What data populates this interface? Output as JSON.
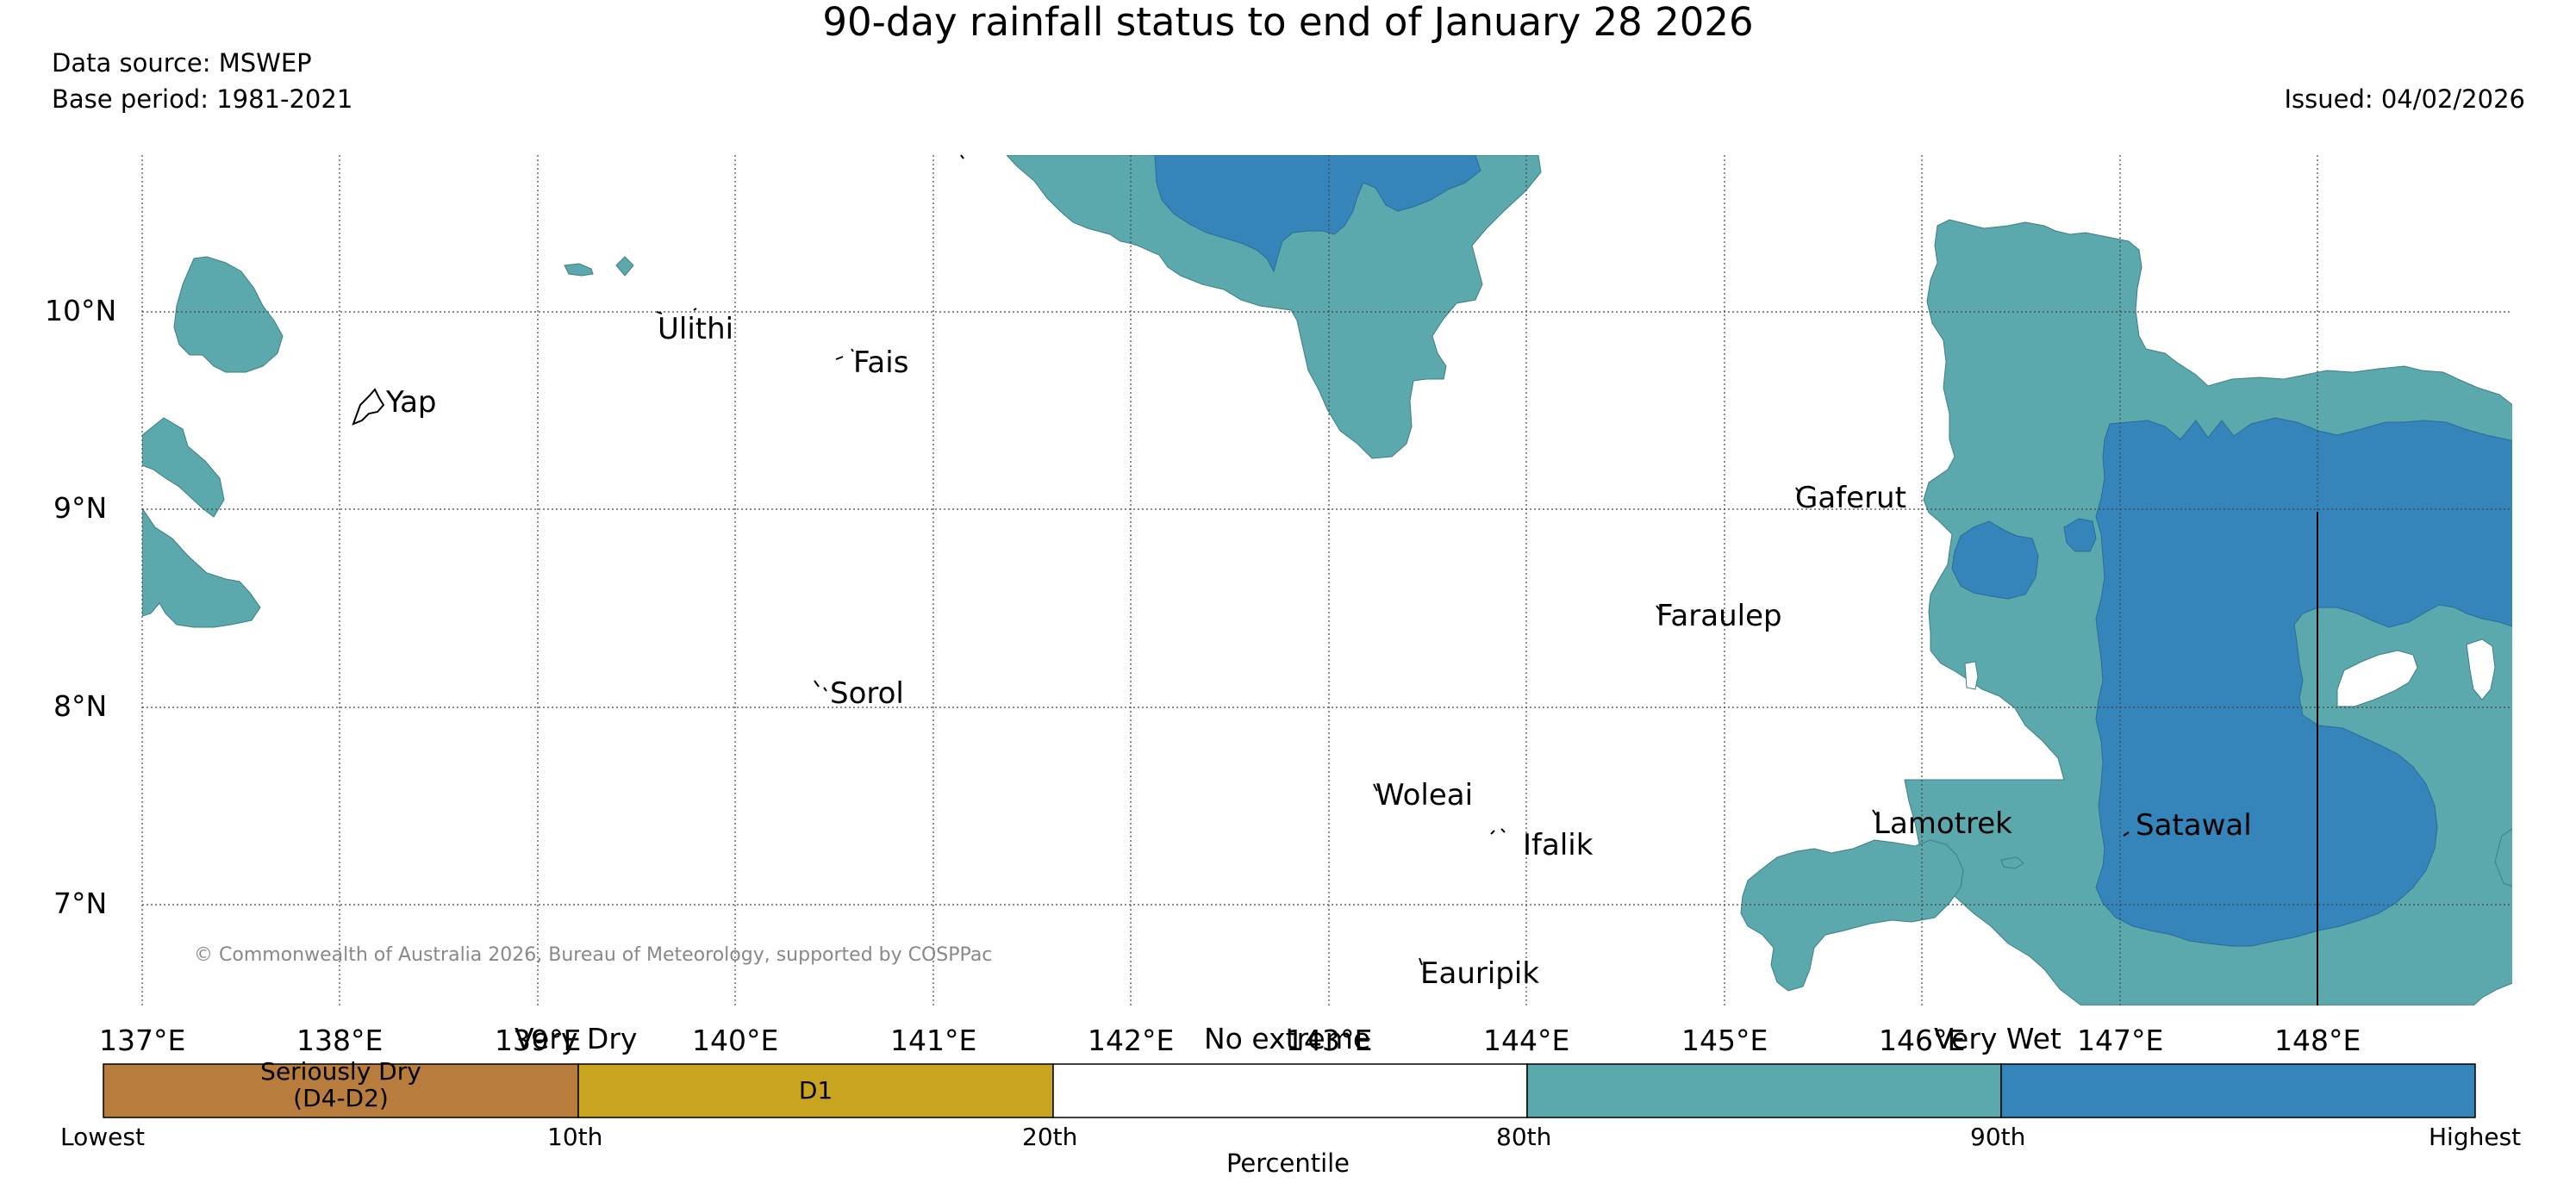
{
  "header": {
    "title": "90-day rainfall status to end of January 28 2026",
    "data_source": "Data source: MSWEP",
    "base_period": "Base period: 1981-2021",
    "issued": "Issued: 04/02/2026"
  },
  "map": {
    "lat_labels": [
      "10°N",
      "9°N",
      "8°N",
      "7°N"
    ],
    "lon_labels": [
      "137°E",
      "138°E",
      "139°E",
      "140°E",
      "141°E",
      "142°E",
      "143°E",
      "144°E",
      "145°E",
      "146°E",
      "147°E",
      "148°E"
    ],
    "places": [
      "Yap",
      "Ulithi",
      "Fais",
      "Gaferut",
      "Faraulep",
      "Sorol",
      "Woleai",
      "Ifalik",
      "Lamotrek",
      "Satawal",
      "Eauripik"
    ],
    "copyright": "© Commonwealth of Australia 2026, Bureau of Meteorology, supported by COSPPac",
    "colors": {
      "above_80th": "#5ba8ad",
      "above_90th": "#3585bb",
      "grid": "#444444"
    }
  },
  "legend": {
    "categories": [
      "Very Dry",
      "No extreme",
      "Very Wet"
    ],
    "segments": [
      {
        "label_1": "Seriously Dry",
        "label_2": "(D4-D2)",
        "color": "#b87d3c"
      },
      {
        "label_1": "D1",
        "label_2": "",
        "color": "#c8a41f"
      },
      {
        "label_1": "",
        "label_2": "",
        "color": "#ffffff"
      },
      {
        "label_1": "",
        "label_2": "",
        "color": "#5ba8ad"
      },
      {
        "label_1": "",
        "label_2": "",
        "color": "#3585bb"
      }
    ],
    "ticks": [
      "Lowest",
      "10th",
      "20th",
      "80th",
      "90th",
      "Highest"
    ],
    "axis_label": "Percentile"
  }
}
